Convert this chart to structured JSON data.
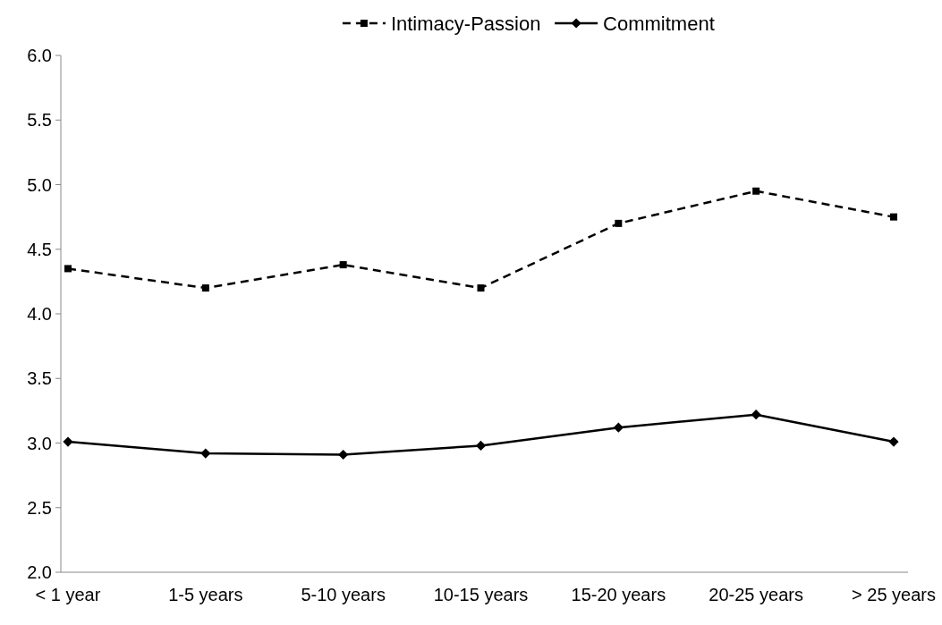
{
  "chart_data": {
    "type": "line",
    "categories": [
      "< 1 year",
      "1-5 years",
      "5-10 years",
      "10-15 years",
      "15-20 years",
      "20-25 years",
      "> 25 years"
    ],
    "series": [
      {
        "name": "Intimacy-Passion",
        "color": "#000000",
        "marker": "square",
        "line_style": "dashed",
        "values": [
          4.35,
          4.2,
          4.38,
          4.2,
          4.7,
          4.95,
          4.75
        ]
      },
      {
        "name": "Commitment",
        "color": "#000000",
        "marker": "diamond",
        "line_style": "solid",
        "values": [
          3.01,
          2.92,
          2.91,
          2.98,
          3.12,
          3.22,
          3.01
        ]
      }
    ],
    "ylim": [
      2.0,
      6.0
    ],
    "yticks": [
      {
        "value": 2,
        "label": "2.0"
      },
      {
        "value": 2.5,
        "label": "2.5"
      },
      {
        "value": 3,
        "label": "3.0"
      },
      {
        "value": 3.5,
        "label": "3.5"
      },
      {
        "value": 4,
        "label": "4.0"
      },
      {
        "value": 4.5,
        "label": "4.5"
      },
      {
        "value": 5,
        "label": "5.0"
      },
      {
        "value": 5.5,
        "label": "5.5"
      },
      {
        "value": 6,
        "label": "6.0"
      }
    ],
    "grid": false,
    "legend": "top"
  }
}
